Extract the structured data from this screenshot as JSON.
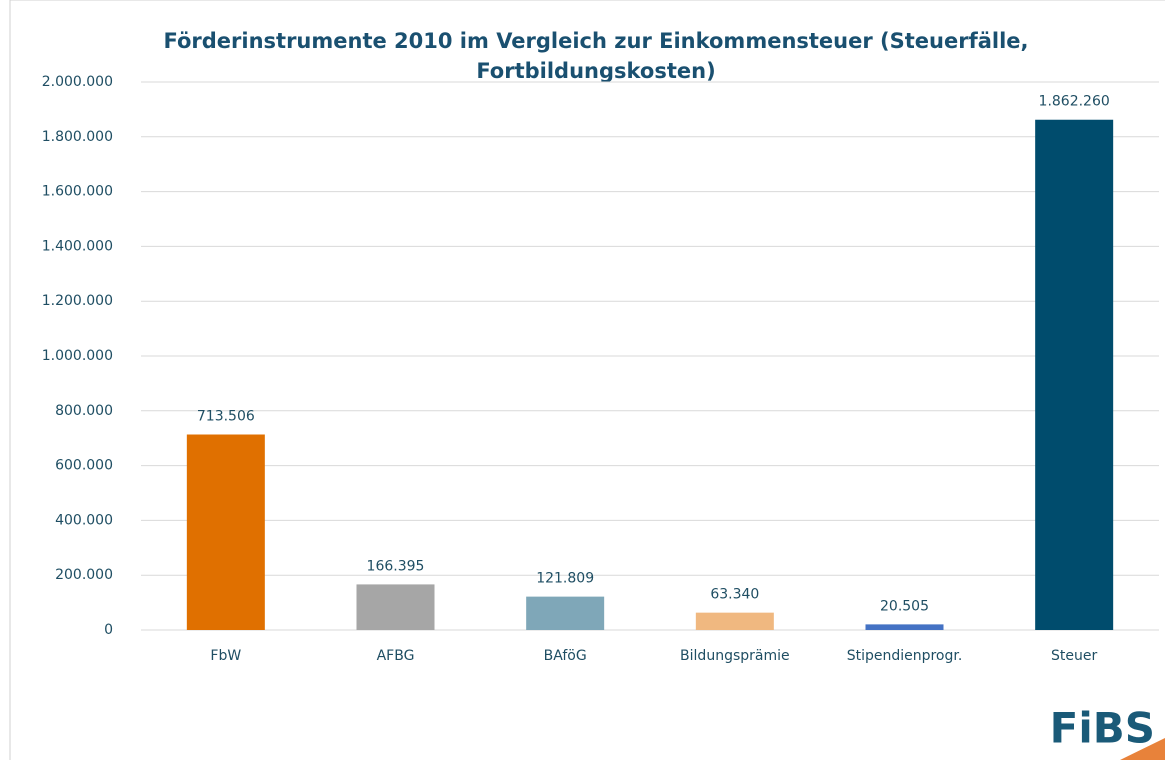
{
  "chart_data": {
    "type": "bar",
    "title": [
      "Förderinstrumente 2010 im Vergleich zur Einkommensteuer (Steuerfälle,",
      "Fortbildungskosten)"
    ],
    "categories": [
      "FbW",
      "AFBG",
      "BAföG",
      "Bildungsprämie",
      "Stipendienprogr.",
      "Steuer"
    ],
    "values": [
      713506,
      166395,
      121809,
      63340,
      20505,
      1862260
    ],
    "value_labels": [
      "713.506",
      "166.395",
      "121.809",
      "63.340",
      "20.505",
      "1.862.260"
    ],
    "colors": [
      "#e07000",
      "#a6a6a6",
      "#7fa7b8",
      "#f0b880",
      "#4472c4",
      "#004c6d"
    ],
    "ylim": [
      0,
      2000000
    ],
    "yticks": [
      0,
      {
        "value": 200000,
        "label": "200.000"
      },
      {
        "value": 400000,
        "label": "400.000"
      },
      {
        "value": 600000,
        "label": "600.000"
      },
      {
        "value": 800000,
        "label": "800.000"
      },
      {
        "value": 1000000,
        "label": "1.000.000"
      },
      {
        "value": 1200000,
        "label": "1.200.000"
      },
      {
        "value": 1400000,
        "label": "1.400.000"
      },
      {
        "value": 1600000,
        "label": "1.600.000"
      },
      {
        "value": 1800000,
        "label": "1.800.000"
      },
      {
        "value": 2000000,
        "label": "2.000.000"
      }
    ],
    "grid": true
  },
  "logo": "FiBS"
}
